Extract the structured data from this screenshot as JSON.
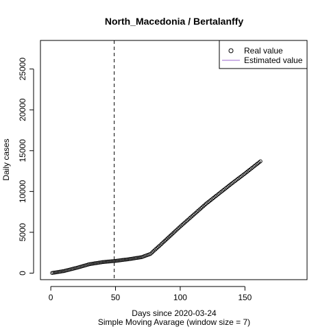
{
  "chart_data": {
    "type": "scatter",
    "title": "North_Macedonia / Bertalanffy",
    "xlabel": "Days since 2020-03-24",
    "xlabel2": "Simple Moving Avarage (window size = 7)",
    "ylabel": "Daily cases",
    "xlim": [
      -8,
      198
    ],
    "ylim": [
      -800,
      28500
    ],
    "x_ticks": [
      0,
      50,
      100,
      150
    ],
    "y_ticks": [
      0,
      5000,
      10000,
      15000,
      20000,
      25000
    ],
    "x_tick_labels": [
      "0",
      "50",
      "100",
      "150"
    ],
    "y_tick_labels": [
      "0",
      "5000",
      "10000",
      "15000",
      "20000",
      "25000"
    ],
    "vline_x": 49,
    "legend": {
      "position": "top-right",
      "entries": [
        {
          "label": "Real value",
          "marker": "circle",
          "color": "#000000"
        },
        {
          "label": "Estimated value",
          "marker": "line",
          "color": "#9966cc"
        }
      ]
    },
    "series": [
      {
        "name": "Real value",
        "anchors": [
          [
            1,
            20
          ],
          [
            10,
            250
          ],
          [
            20,
            650
          ],
          [
            30,
            1100
          ],
          [
            40,
            1350
          ],
          [
            50,
            1500
          ],
          [
            60,
            1700
          ],
          [
            70,
            1950
          ],
          [
            77,
            2350
          ],
          [
            85,
            3500
          ],
          [
            100,
            5700
          ],
          [
            120,
            8500
          ],
          [
            140,
            11000
          ],
          [
            150,
            12200
          ],
          [
            162,
            13700
          ]
        ],
        "n_points": 162
      }
    ]
  }
}
